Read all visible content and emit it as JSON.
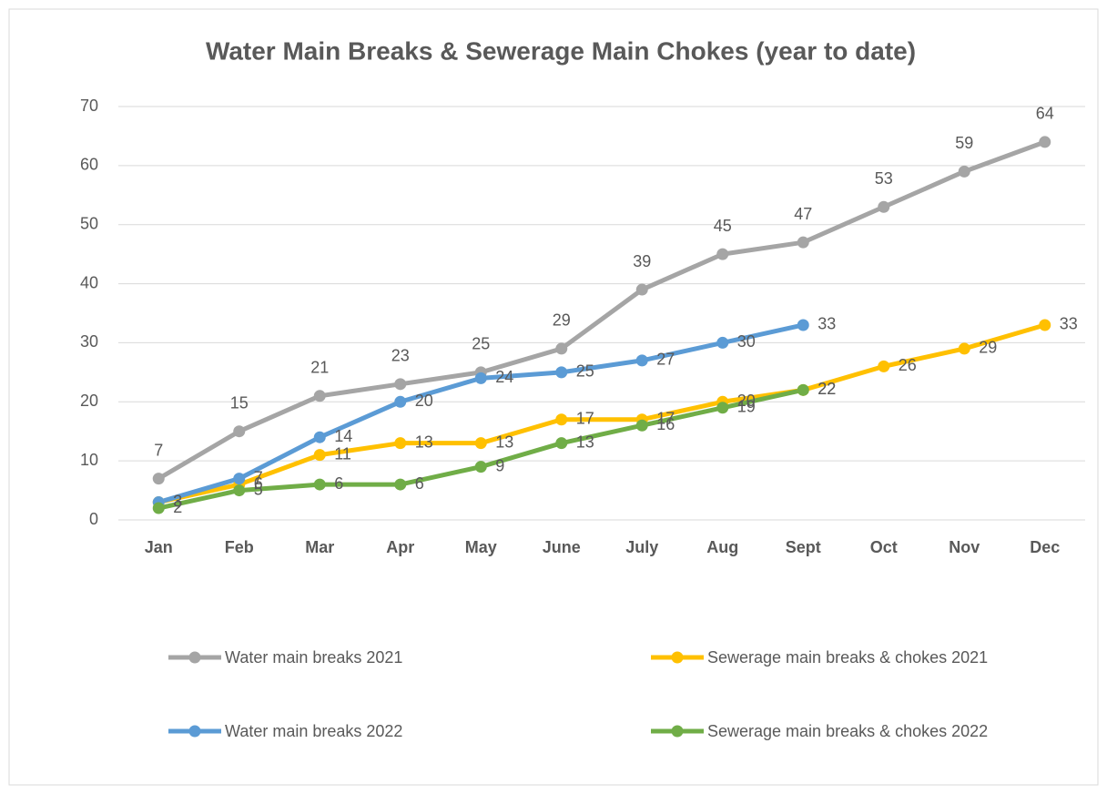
{
  "chart_data": {
    "type": "line",
    "title": "Water Main Breaks & Sewerage Main Chokes (year to date)",
    "categories": [
      "Jan",
      "Feb",
      "Mar",
      "Apr",
      "May",
      "June",
      "July",
      "Aug",
      "Sept",
      "Oct",
      "Nov",
      "Dec"
    ],
    "series": [
      {
        "name": "Water main breaks 2021",
        "color": "#a5a5a5",
        "values": [
          7,
          15,
          21,
          23,
          25,
          29,
          39,
          45,
          47,
          53,
          59,
          64
        ]
      },
      {
        "name": "Sewerage main breaks & chokes 2021",
        "color": "#ffc000",
        "values": [
          3,
          6,
          11,
          13,
          13,
          17,
          17,
          20,
          22,
          26,
          29,
          33
        ]
      },
      {
        "name": "Water main breaks 2022",
        "color": "#5b9bd5",
        "values": [
          3,
          7,
          14,
          20,
          24,
          25,
          27,
          30,
          33,
          null,
          null,
          null
        ]
      },
      {
        "name": "Sewerage main breaks & chokes 2022",
        "color": "#70ad47",
        "values": [
          2,
          5,
          6,
          6,
          9,
          13,
          16,
          19,
          22,
          null,
          null,
          null
        ]
      }
    ],
    "ylim": [
      0,
      70
    ],
    "yticks": [
      0,
      10,
      20,
      30,
      40,
      50,
      60,
      70
    ],
    "grid": true
  }
}
